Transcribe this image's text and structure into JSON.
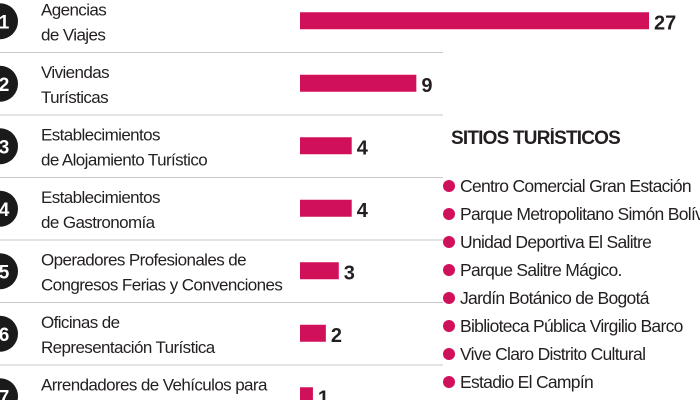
{
  "chart_data": {
    "type": "bar",
    "orientation": "horizontal",
    "categories": [
      [
        "Agencias",
        "de Viajes"
      ],
      [
        "Viviendas",
        "Turísticas"
      ],
      [
        "Establecimientos",
        "de Alojamiento Turístico"
      ],
      [
        "Establecimientos",
        "de Gastronomía"
      ],
      [
        "Operadores Profesionales de",
        "Congresos Ferias y Convenciones"
      ],
      [
        "Oficinas de",
        "Representación Turística"
      ],
      [
        "Arrendadores de Vehículos para",
        ""
      ]
    ],
    "ranks": [
      "1",
      "2",
      "3",
      "4",
      "5",
      "6",
      "7"
    ],
    "values": [
      27,
      9,
      4,
      4,
      3,
      2,
      1
    ],
    "value_labels": [
      "27",
      "9",
      "4",
      "4",
      "3",
      "2",
      "1"
    ],
    "xlim": [
      0,
      27
    ],
    "title": "",
    "xlabel": "",
    "ylabel": "",
    "grid": false,
    "bar_color": "#d1105a",
    "badge_color": "#1a1a1a",
    "separator_color": "#c8c8c8"
  },
  "sites": {
    "title": "SITIOS TURÍSTICOS",
    "dot_color": "#d1105a",
    "items": [
      "Centro Comercial Gran Estación",
      "Parque Metropolitano Simón Bolívar",
      "Unidad Deportiva El Salitre",
      "Parque Salitre Mágico.",
      "Jardín Botánico de Bogotá",
      "Biblioteca Pública Virgilio Barco",
      "Vive Claro Distrito Cultural",
      "Estadio El Campín"
    ]
  }
}
